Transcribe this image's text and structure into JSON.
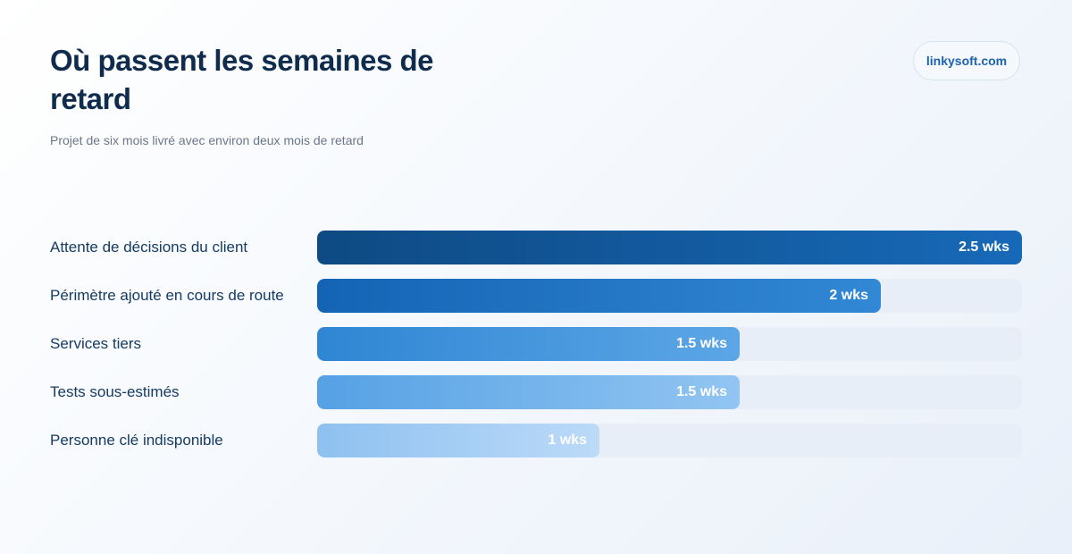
{
  "header": {
    "title": "Où passent les semaines de retard",
    "subtitle": "Projet de six mois livré avec environ deux mois de retard",
    "badge": "linkysoft.com"
  },
  "chart_data": {
    "type": "bar",
    "orientation": "horizontal",
    "title": "Où passent les semaines de retard",
    "subtitle": "Projet de six mois livré avec environ deux mois de retard",
    "categories": [
      "Attente de décisions du client",
      "Périmètre ajouté en cours de route",
      "Services tiers",
      "Tests sous-estimés",
      "Personne clé indisponible"
    ],
    "values": [
      2.5,
      2,
      1.5,
      1.5,
      1
    ],
    "value_labels": [
      "2.5 wks",
      "2 wks",
      "1.5 wks",
      "1.5 wks",
      "1 wks"
    ],
    "xlim": [
      0,
      2.5
    ],
    "grid": false,
    "legend": "none",
    "colors": [
      [
        "#0e4a83",
        "#1769b8"
      ],
      [
        "#1464b5",
        "#3288d4"
      ],
      [
        "#2f86d3",
        "#5ca6e6"
      ],
      [
        "#55a1e4",
        "#92c5f2"
      ],
      [
        "#8ec1f0",
        "#bcdaf8"
      ]
    ]
  }
}
